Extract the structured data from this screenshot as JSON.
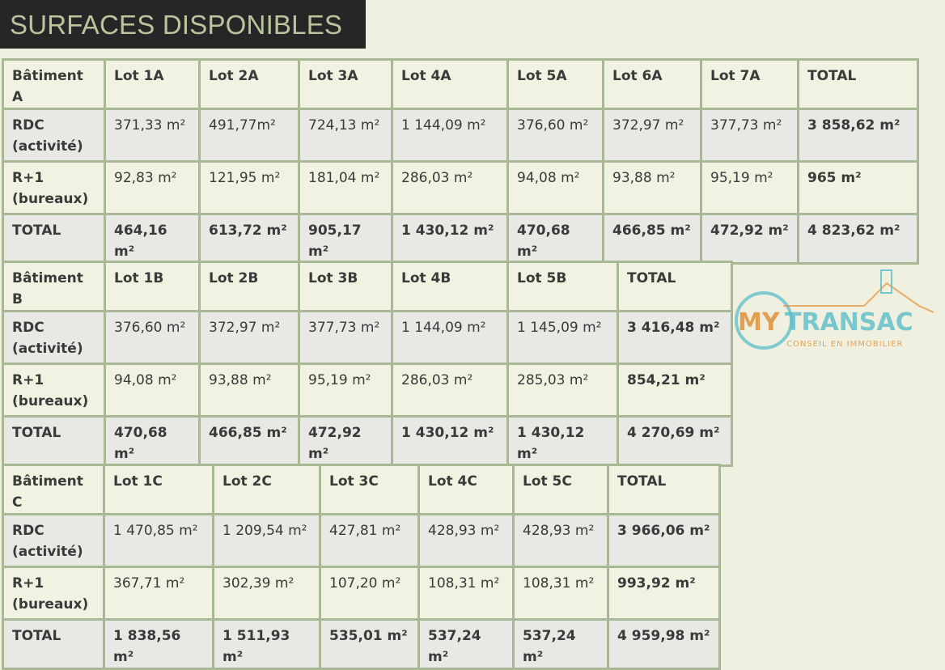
{
  "title": "SURFACES DISPONIBLES",
  "tables": [
    {
      "header": [
        "Bâtiment A",
        "Lot 1A",
        "Lot 2A",
        "Lot 3A",
        "Lot 4A",
        "Lot 5A",
        "Lot 6A",
        "Lot 7A",
        "TOTAL"
      ],
      "rows": [
        {
          "label": [
            "RDC",
            "(activité)"
          ],
          "values": [
            "371,33 m²",
            "491,77m²",
            "724,13 m²",
            "1 144,09 m²",
            "376,60 m²",
            "372,97 m²",
            "377,73 m²",
            "3 858,62 m²"
          ]
        },
        {
          "label": [
            "R+1",
            "(bureaux)"
          ],
          "values": [
            "92,83 m²",
            "121,95 m²",
            "181,04 m²",
            "286,03 m²",
            "94,08 m²",
            "93,88 m²",
            "95,19 m²",
            "965 m²"
          ]
        },
        {
          "label": [
            "TOTAL"
          ],
          "values": [
            "464,16 m²",
            "613,72 m²",
            "905,17 m²",
            "1 430,12 m²",
            "470,68 m²",
            "466,85 m²",
            "472,92 m²",
            "4 823,62 m²"
          ]
        }
      ]
    },
    {
      "header": [
        "Bâtiment B",
        "Lot 1B",
        "Lot 2B",
        "Lot 3B",
        "Lot 4B",
        "Lot 5B",
        "TOTAL"
      ],
      "rows": [
        {
          "label": [
            "RDC",
            "(activité)"
          ],
          "values": [
            "376,60 m²",
            "372,97 m²",
            "377,73 m²",
            "1 144,09 m²",
            "1 145,09 m²",
            "3 416,48 m²"
          ]
        },
        {
          "label": [
            "R+1",
            "(bureaux)"
          ],
          "values": [
            "94,08 m²",
            "93,88 m²",
            "95,19 m²",
            "286,03 m²",
            "285,03 m²",
            "854,21 m²"
          ]
        },
        {
          "label": [
            "TOTAL"
          ],
          "values": [
            "470,68 m²",
            "466,85 m²",
            "472,92 m²",
            "1 430,12 m²",
            "1 430,12 m²",
            "4 270,69 m²"
          ]
        }
      ]
    },
    {
      "header": [
        "Bâtiment C",
        "Lot 1C",
        "Lot 2C",
        "Lot 3C",
        "Lot 4C",
        "Lot 5C",
        "TOTAL"
      ],
      "rows": [
        {
          "label": [
            "RDC",
            "(activité)"
          ],
          "values": [
            "1 470,85 m²",
            "1 209,54 m²",
            "427,81 m²",
            "428,93 m²",
            "428,93 m²",
            "3 966,06 m²"
          ]
        },
        {
          "label": [
            "R+1",
            "(bureaux)"
          ],
          "values": [
            "367,71 m²",
            "302,39 m²",
            "107,20 m²",
            "108,31 m²",
            "108,31 m²",
            "993,92 m²"
          ]
        },
        {
          "label": [
            "TOTAL"
          ],
          "values": [
            "1 838,56 m²",
            "1 511,93 m²",
            "535,01 m²",
            "537,24 m²",
            "537,24 m²",
            "4 959,98 m²"
          ]
        }
      ]
    }
  ],
  "watermark": {
    "brand_my": "MY",
    "brand_rest": "TRANSAC",
    "tagline": "CONSEIL EN IMMOBILIER",
    "color_orange": "#e0913a",
    "color_teal": "#5bbdc9"
  },
  "colors": {
    "border": "#a8b894",
    "title_bg": "#262626",
    "title_text": "#b9c59d"
  }
}
